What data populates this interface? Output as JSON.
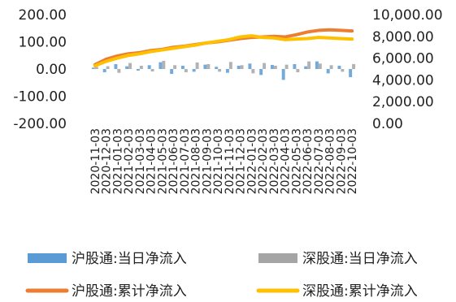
{
  "chart_data": {
    "type": "bar+line",
    "title": "",
    "left_axis": {
      "ticks": [
        "200.00",
        "100.00",
        "0.00",
        "-100.00",
        "-200.00"
      ],
      "range": [
        -200,
        200
      ]
    },
    "right_axis": {
      "ticks": [
        "10,000.00",
        "8,000.00",
        "6,000.00",
        "4,000.00",
        "2,000.00",
        "0.00"
      ],
      "range": [
        0,
        10000
      ]
    },
    "x_labels": [
      "2020-11-03",
      "2020-12-03",
      "2021-01-03",
      "2021-02-03",
      "2021-03-03",
      "2021-04-03",
      "2021-05-03",
      "2021-06-03",
      "2021-07-03",
      "2021-08-03",
      "2021-09-03",
      "2021-10-03",
      "2021-11-03",
      "2021-12-03",
      "2022-01-03",
      "2022-02-03",
      "2022-03-03",
      "2022-04-03",
      "2022-05-03",
      "2022-06-03",
      "2022-07-03",
      "2022-08-03",
      "2022-09-03",
      "2022-10-03"
    ],
    "series": [
      {
        "name": "沪股通:当日净流入",
        "kind": "bar",
        "axis": "left",
        "color": "#5b9bd5",
        "values": [
          5,
          -12,
          18,
          10,
          -6,
          14,
          25,
          -18,
          12,
          -10,
          16,
          8,
          -14,
          12,
          20,
          -22,
          15,
          -40,
          18,
          10,
          28,
          -16,
          12,
          -30
        ]
      },
      {
        "name": "深股通:当日净流入",
        "kind": "bar",
        "axis": "left",
        "color": "#a5a5a5",
        "values": [
          8,
          10,
          -14,
          22,
          12,
          -9,
          30,
          14,
          -12,
          24,
          18,
          -10,
          26,
          14,
          -16,
          22,
          12,
          16,
          -12,
          28,
          20,
          14,
          -10,
          18
        ]
      },
      {
        "name": "沪股通:累计净流入",
        "kind": "line",
        "axis": "right",
        "color": "#ed7d31",
        "values": [
          5400,
          5900,
          6200,
          6400,
          6500,
          6700,
          6800,
          7000,
          7100,
          7250,
          7400,
          7500,
          7650,
          7800,
          7900,
          7950,
          8000,
          7950,
          8150,
          8400,
          8550,
          8600,
          8550,
          8500
        ]
      },
      {
        "name": "深股通:累计净流入",
        "kind": "line",
        "axis": "right",
        "color": "#ffc000",
        "values": [
          5300,
          5700,
          6000,
          6250,
          6400,
          6600,
          6750,
          6900,
          7050,
          7200,
          7400,
          7550,
          7700,
          7950,
          8050,
          7900,
          7850,
          7700,
          7750,
          7800,
          7900,
          7850,
          7800,
          7750
        ]
      }
    ],
    "legend_position": "bottom",
    "grid": false
  }
}
